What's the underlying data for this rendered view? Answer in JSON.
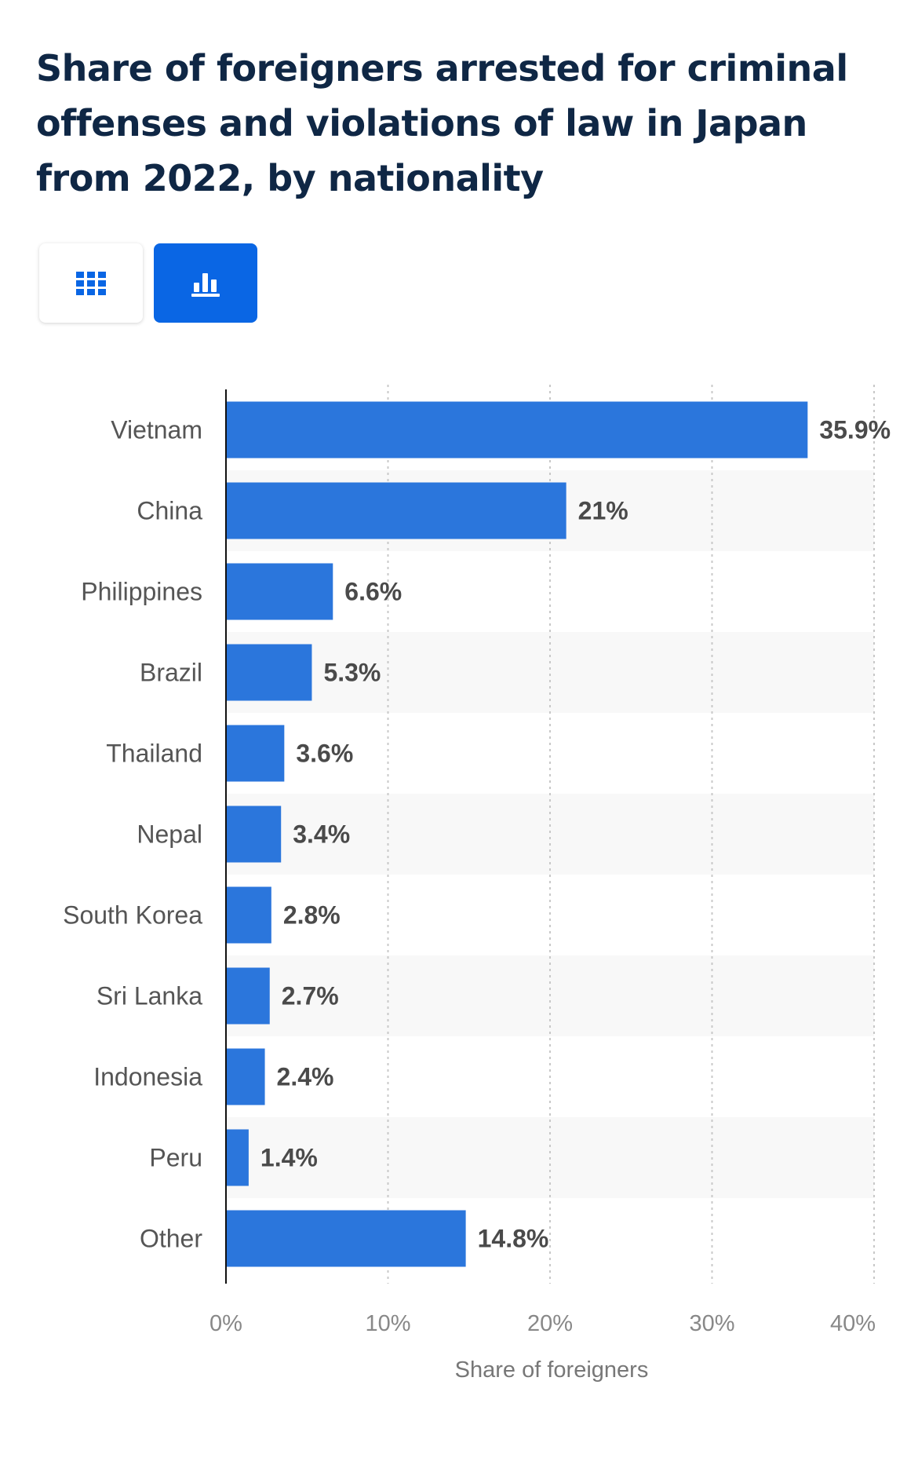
{
  "title": "Share of foreigners arrested for criminal offenses and violations of law in Japan from 2022, by nationality",
  "toggles": {
    "table_icon": "table-grid-icon",
    "chart_icon": "bar-chart-icon",
    "active": "chart"
  },
  "colors": {
    "bar": "#2b76dc",
    "title": "#0f2745",
    "active_toggle": "#0a66e4",
    "band": "#f8f8f8"
  },
  "chart_data": {
    "type": "bar",
    "orientation": "horizontal",
    "categories": [
      "Vietnam",
      "China",
      "Philippines",
      "Brazil",
      "Thailand",
      "Nepal",
      "South Korea",
      "Sri Lanka",
      "Indonesia",
      "Peru",
      "Other"
    ],
    "values": [
      35.9,
      21,
      6.6,
      5.3,
      3.6,
      3.4,
      2.8,
      2.7,
      2.4,
      1.4,
      14.8
    ],
    "value_labels": [
      "35.9%",
      "21%",
      "6.6%",
      "5.3%",
      "3.6%",
      "3.4%",
      "2.8%",
      "2.7%",
      "2.4%",
      "1.4%",
      "14.8%"
    ],
    "xlabel": "Share of foreigners",
    "xlim": [
      0,
      40
    ],
    "xticks": [
      0,
      10,
      20,
      30,
      40
    ],
    "xtick_labels": [
      "0%",
      "10%",
      "20%",
      "30%",
      "40%"
    ],
    "grid": true
  }
}
